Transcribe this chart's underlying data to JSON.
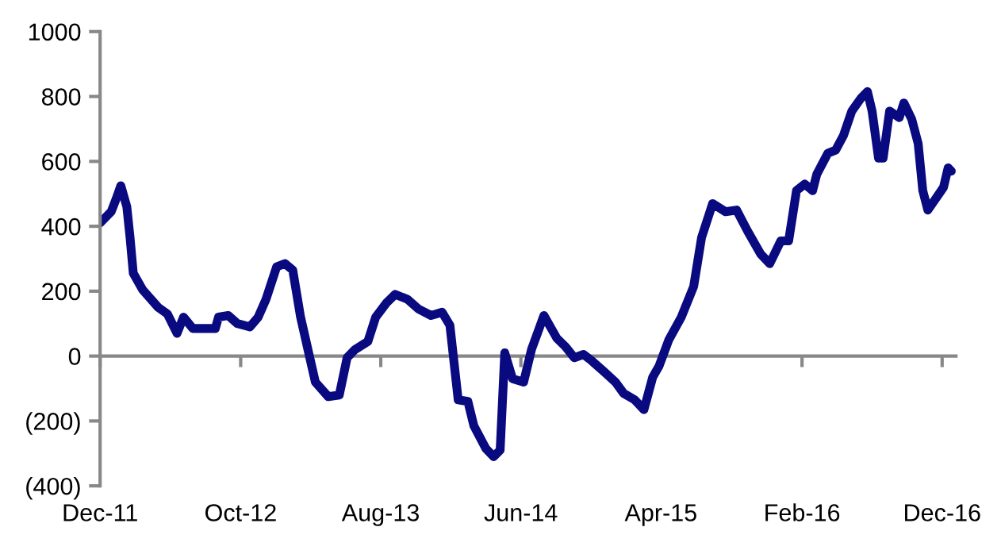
{
  "chart_data": {
    "type": "line",
    "x": [
      "2011-12-01",
      "2011-12-25",
      "2012-01-05",
      "2012-01-15",
      "2012-01-28",
      "2012-02-04",
      "2012-02-11",
      "2012-03-02",
      "2012-04-05",
      "2012-04-25",
      "2012-05-16",
      "2012-05-30",
      "2012-06-19",
      "2012-08-07",
      "2012-08-14",
      "2012-09-04",
      "2012-09-24",
      "2012-10-21",
      "2012-11-08",
      "2012-11-25",
      "2012-12-18",
      "2013-01-05",
      "2013-01-22",
      "2013-02-08",
      "2013-02-28",
      "2013-03-12",
      "2013-04-09",
      "2013-05-03",
      "2013-05-20",
      "2013-06-06",
      "2013-07-04",
      "2013-07-21",
      "2013-08-14",
      "2013-09-01",
      "2013-09-28",
      "2013-10-22",
      "2013-11-18",
      "2013-12-12",
      "2013-12-29",
      "2014-01-16",
      "2014-02-06",
      "2014-02-19",
      "2014-03-17",
      "2014-04-03",
      "2014-04-17",
      "2014-04-27",
      "2014-05-14",
      "2014-06-07",
      "2014-06-24",
      "2014-07-21",
      "2014-08-18",
      "2014-09-05",
      "2014-09-25",
      "2014-10-15",
      "2014-11-02",
      "2014-11-26",
      "2014-12-23",
      "2015-01-10",
      "2015-02-03",
      "2015-02-23",
      "2015-03-14",
      "2015-03-28",
      "2015-04-18",
      "2015-05-15",
      "2015-06-11",
      "2015-06-28",
      "2015-07-22",
      "2015-08-19",
      "2015-09-12",
      "2015-10-06",
      "2015-11-03",
      "2015-11-23",
      "2015-12-17",
      "2016-01-03",
      "2016-01-20",
      "2016-02-07",
      "2016-02-24",
      "2016-03-04",
      "2016-03-28",
      "2016-04-14",
      "2016-05-01",
      "2016-05-19",
      "2016-06-08",
      "2016-06-22",
      "2016-07-02",
      "2016-07-16",
      "2016-07-26",
      "2016-08-09",
      "2016-08-30",
      "2016-09-09",
      "2016-09-26",
      "2016-10-10",
      "2016-10-20",
      "2016-10-31",
      "2016-11-17",
      "2016-12-04",
      "2016-12-14",
      "2016-12-21"
    ],
    "series": [
      {
        "color": "#0a0a80",
        "values": [
          410,
          445,
          485,
          525,
          460,
          365,
          255,
          205,
          150,
          130,
          70,
          120,
          85,
          85,
          120,
          125,
          100,
          90,
          120,
          175,
          275,
          285,
          265,
          120,
          -5,
          -80,
          -125,
          -120,
          -5,
          20,
          45,
          120,
          165,
          190,
          175,
          145,
          125,
          135,
          95,
          -135,
          -140,
          -215,
          -285,
          -310,
          -290,
          10,
          -70,
          -80,
          20,
          125,
          55,
          30,
          -5,
          5,
          -15,
          -45,
          -80,
          -115,
          -135,
          -165,
          -65,
          -30,
          50,
          120,
          215,
          365,
          470,
          445,
          450,
          385,
          315,
          285,
          355,
          355,
          510,
          530,
          510,
          560,
          625,
          635,
          680,
          755,
          795,
          815,
          755,
          610,
          610,
          755,
          735,
          780,
          730,
          655,
          510,
          450,
          485,
          520,
          580,
          570
        ]
      }
    ],
    "xlim": [
      "2011-12-01",
      "2016-12-31"
    ],
    "xticks": [
      {
        "value": "2011-12-01",
        "label": "Dec-11"
      },
      {
        "value": "2012-10-01",
        "label": "Oct-12"
      },
      {
        "value": "2013-08-01",
        "label": "Aug-13"
      },
      {
        "value": "2014-06-01",
        "label": "Jun-14"
      },
      {
        "value": "2015-04-01",
        "label": "Apr-15"
      },
      {
        "value": "2016-02-01",
        "label": "Feb-16"
      },
      {
        "value": "2016-12-01",
        "label": "Dec-16"
      }
    ],
    "ylim": [
      -400,
      1000
    ],
    "yticks": [
      {
        "value": -400,
        "label": "(400)"
      },
      {
        "value": -200,
        "label": "(200)"
      },
      0,
      200,
      400,
      600,
      800,
      1000
    ],
    "line_style": "solid",
    "marker": "none"
  }
}
